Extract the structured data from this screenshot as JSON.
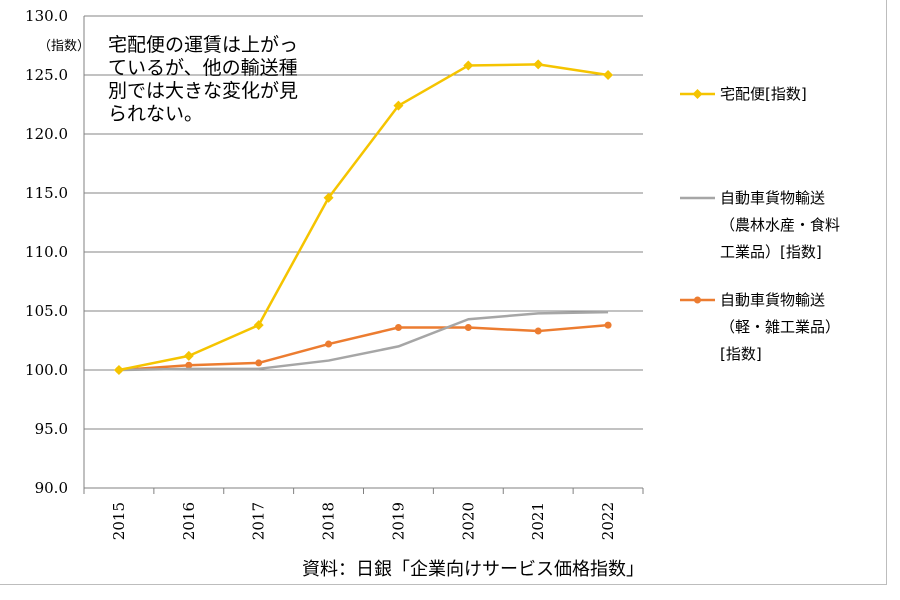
{
  "chart_data": {
    "type": "line",
    "y_unit_label": "（指数）",
    "ylim": [
      90,
      130
    ],
    "y_ticks": [
      "130.0",
      "125.0",
      "120.0",
      "115.0",
      "110.0",
      "105.0",
      "100.0",
      "95.0",
      "90.0"
    ],
    "y_tick_values": [
      130,
      125,
      120,
      115,
      110,
      105,
      100,
      95,
      90
    ],
    "categories": [
      "2015",
      "2016",
      "2017",
      "2018",
      "2019",
      "2020",
      "2021",
      "2022"
    ],
    "grid": true,
    "legend_position": "right",
    "series": [
      {
        "name": "宅配便[指数]",
        "legend_lines": [
          "宅配便[指数]"
        ],
        "color": "#f5c400",
        "marker": "diamond",
        "values": [
          100.0,
          101.2,
          103.8,
          114.6,
          122.4,
          125.8,
          125.9,
          125.0
        ]
      },
      {
        "name": "自動車貨物輸送（農林水産・食料工業品）[指数]",
        "legend_lines": [
          "自動車貨物輸送",
          "（農林水産・食料",
          "工業品）[指数]"
        ],
        "color": "#a6a6a6",
        "marker": "none",
        "values": [
          100.0,
          100.1,
          100.1,
          100.8,
          102.0,
          104.3,
          104.8,
          104.9
        ]
      },
      {
        "name": "自動車貨物輸送（軽・雑工業品）[指数]",
        "legend_lines": [
          "自動車貨物輸送",
          "（軽・雑工業品）",
          "[指数]"
        ],
        "color": "#ec7c30",
        "marker": "circle",
        "values": [
          100.0,
          100.4,
          100.6,
          102.2,
          103.6,
          103.6,
          103.3,
          103.8
        ]
      }
    ],
    "annotation_lines": [
      "宅配便の運賃は上がっ",
      "ているが、他の輸送種",
      "別では大きな変化が見",
      "られない。"
    ],
    "source": "資料：日銀「企業向けサービス価格指数」"
  }
}
